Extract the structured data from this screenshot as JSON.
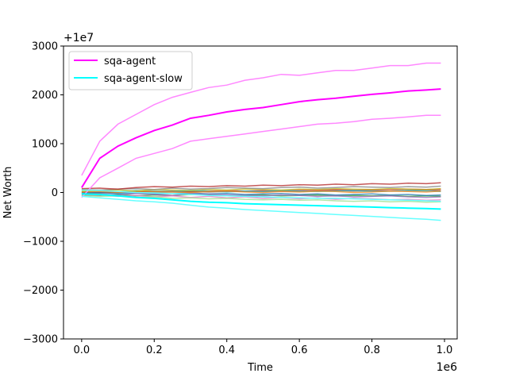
{
  "chart_data": {
    "type": "line",
    "xlabel": "Time",
    "ylabel": "Net Worth",
    "x_offset_text": "1e6",
    "y_offset_text": "+1e7",
    "xlim": [
      -0.05,
      1.035
    ],
    "ylim": [
      -3000,
      3000
    ],
    "x_ticks": [
      0.0,
      0.2,
      0.4,
      0.6,
      0.8,
      1.0
    ],
    "x_tick_labels": [
      "0.0",
      "0.2",
      "0.4",
      "0.6",
      "0.8",
      "1.0"
    ],
    "y_ticks": [
      -3000,
      -2000,
      -1000,
      0,
      1000,
      2000,
      3000
    ],
    "y_tick_labels": [
      "−3000",
      "−2000",
      "−1000",
      "0",
      "1000",
      "2000",
      "3000"
    ],
    "legend_position": "top-left",
    "x": [
      0.0,
      0.05,
      0.1,
      0.15,
      0.2,
      0.25,
      0.3,
      0.35,
      0.4,
      0.45,
      0.5,
      0.55,
      0.6,
      0.65,
      0.7,
      0.75,
      0.8,
      0.85,
      0.9,
      0.95,
      0.99
    ],
    "series": [
      {
        "name": "sqa-agent",
        "color": "#ff00ff",
        "values": [
          100,
          700,
          950,
          1120,
          1270,
          1380,
          1520,
          1580,
          1650,
          1700,
          1740,
          1800,
          1860,
          1900,
          1930,
          1970,
          2010,
          2040,
          2080,
          2100,
          2120
        ]
      },
      {
        "name": "sqa-agent-slow",
        "color": "#00ffff",
        "values": [
          -30,
          -40,
          -70,
          -100,
          -120,
          -150,
          -180,
          -200,
          -210,
          -230,
          -240,
          -250,
          -260,
          -270,
          -280,
          -290,
          -300,
          -310,
          -320,
          -330,
          -340
        ]
      }
    ],
    "bands": [
      {
        "series": "sqa-agent",
        "color": "#ff88ff",
        "upper": [
          350,
          1050,
          1400,
          1600,
          1800,
          1950,
          2050,
          2150,
          2200,
          2300,
          2350,
          2420,
          2400,
          2450,
          2500,
          2500,
          2550,
          2600,
          2600,
          2650,
          2650
        ],
        "lower": [
          -100,
          300,
          500,
          700,
          800,
          900,
          1050,
          1100,
          1150,
          1200,
          1250,
          1300,
          1350,
          1400,
          1420,
          1450,
          1500,
          1520,
          1550,
          1580,
          1580
        ]
      },
      {
        "series": "sqa-agent-slow",
        "color": "#66ffff",
        "upper": [
          50,
          40,
          20,
          0,
          -10,
          -20,
          -40,
          -60,
          -70,
          -80,
          -90,
          -100,
          -110,
          -120,
          -120,
          -130,
          -140,
          -150,
          -160,
          -170,
          -180
        ],
        "lower": [
          -80,
          -110,
          -140,
          -170,
          -190,
          -220,
          -260,
          -300,
          -320,
          -350,
          -370,
          -390,
          -410,
          -430,
          -450,
          -470,
          -490,
          -510,
          -530,
          -550,
          -570
        ]
      }
    ],
    "baselines": [
      {
        "color": "#d62728",
        "values": [
          0,
          0,
          10,
          20,
          20,
          30,
          20,
          30,
          40,
          30,
          40,
          40,
          50,
          50,
          60,
          50,
          60,
          60,
          70,
          60,
          70
        ]
      },
      {
        "color": "#8c564b",
        "values": [
          -20,
          -10,
          0,
          10,
          0,
          10,
          20,
          10,
          20,
          30,
          20,
          30,
          20,
          30,
          40,
          30,
          40,
          30,
          40,
          50,
          40
        ]
      },
      {
        "color": "#2ca02c",
        "values": [
          -50,
          -60,
          -40,
          -70,
          -50,
          -60,
          -40,
          -50,
          -70,
          -60,
          -50,
          -70,
          -60,
          -50,
          -70,
          -60,
          -70,
          -60,
          -80,
          -70,
          -80
        ]
      },
      {
        "color": "#17becf",
        "values": [
          20,
          30,
          10,
          40,
          30,
          20,
          40,
          30,
          10,
          30,
          20,
          40,
          30,
          20,
          30,
          40,
          20,
          30,
          40,
          30,
          20
        ]
      },
      {
        "color": "#1f77b4",
        "values": [
          -10,
          0,
          -20,
          -10,
          -30,
          -20,
          -10,
          -30,
          -20,
          -40,
          -30,
          -20,
          -40,
          -30,
          -50,
          -40,
          -30,
          -50,
          -40,
          -60,
          -50
        ]
      },
      {
        "color": "#ff7f0e",
        "values": [
          10,
          20,
          0,
          30,
          20,
          10,
          0,
          20,
          30,
          10,
          0,
          20,
          10,
          30,
          20,
          0,
          10,
          30,
          20,
          10,
          30
        ]
      },
      {
        "color": "#9467bd",
        "values": [
          -40,
          -30,
          -50,
          -20,
          -40,
          -60,
          -30,
          -40,
          -50,
          -60,
          -70,
          -50,
          -60,
          -80,
          -70,
          -90,
          -80,
          -70,
          -90,
          -100,
          -90
        ]
      },
      {
        "color": "#bcbd22",
        "values": [
          30,
          40,
          50,
          30,
          60,
          50,
          40,
          60,
          50,
          70,
          60,
          50,
          70,
          60,
          80,
          70,
          60,
          80,
          70,
          60,
          80
        ]
      },
      {
        "color": "#e377c2",
        "values": [
          -70,
          -50,
          -80,
          -60,
          -90,
          -70,
          -100,
          -80,
          -110,
          -90,
          -120,
          -100,
          -130,
          -110,
          -140,
          -120,
          -130,
          -150,
          -140,
          -160,
          -150
        ]
      },
      {
        "color": "#7f7f7f",
        "values": [
          60,
          50,
          70,
          80,
          60,
          90,
          70,
          80,
          100,
          90,
          80,
          100,
          110,
          90,
          100,
          120,
          110,
          100,
          120,
          110,
          130
        ]
      },
      {
        "color": "#b22222",
        "values": [
          80,
          90,
          70,
          100,
          120,
          110,
          130,
          120,
          140,
          130,
          150,
          140,
          160,
          150,
          170,
          160,
          180,
          170,
          190,
          180,
          200
        ]
      },
      {
        "color": "#98df8a",
        "values": [
          -60,
          -80,
          -70,
          -100,
          -90,
          -120,
          -110,
          -130,
          -120,
          -140,
          -150,
          -140,
          -160,
          -150,
          -170,
          -180,
          -170,
          -190,
          -180,
          -200,
          -190
        ]
      }
    ]
  }
}
